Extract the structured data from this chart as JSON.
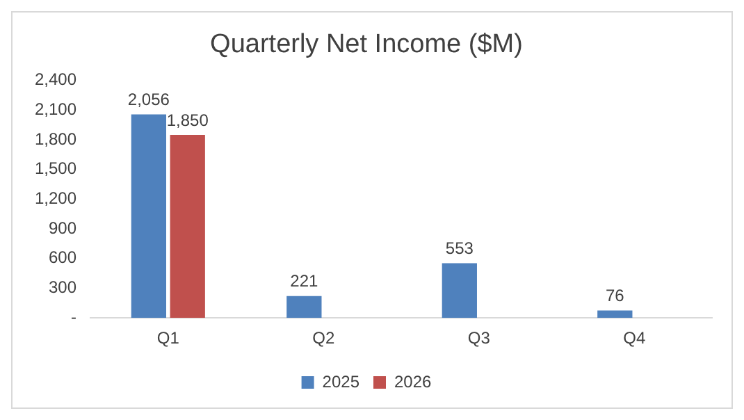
{
  "chart_data": {
    "type": "bar",
    "title": "Quarterly Net Income ($M)",
    "categories": [
      "Q1",
      "Q2",
      "Q3",
      "Q4"
    ],
    "series": [
      {
        "name": "2025",
        "color": "#4f81bd",
        "values": [
          2056,
          221,
          553,
          76
        ],
        "value_labels": [
          "2,056",
          "221",
          "553",
          "76"
        ]
      },
      {
        "name": "2026",
        "color": "#c0504d",
        "values": [
          1850,
          null,
          null,
          null
        ],
        "value_labels": [
          "1,850",
          null,
          null,
          null
        ]
      }
    ],
    "ylim": [
      0,
      2400
    ],
    "yticks": [
      {
        "value": 0,
        "label": "-"
      },
      300,
      600,
      900,
      {
        "value": 1200,
        "label": "1,200"
      },
      {
        "value": 1500,
        "label": "1,500"
      },
      {
        "value": 1800,
        "label": "1,800"
      },
      {
        "value": 2100,
        "label": "2,100"
      },
      {
        "value": 2400,
        "label": "2,400"
      }
    ],
    "grid": false,
    "legend": "bottom"
  }
}
